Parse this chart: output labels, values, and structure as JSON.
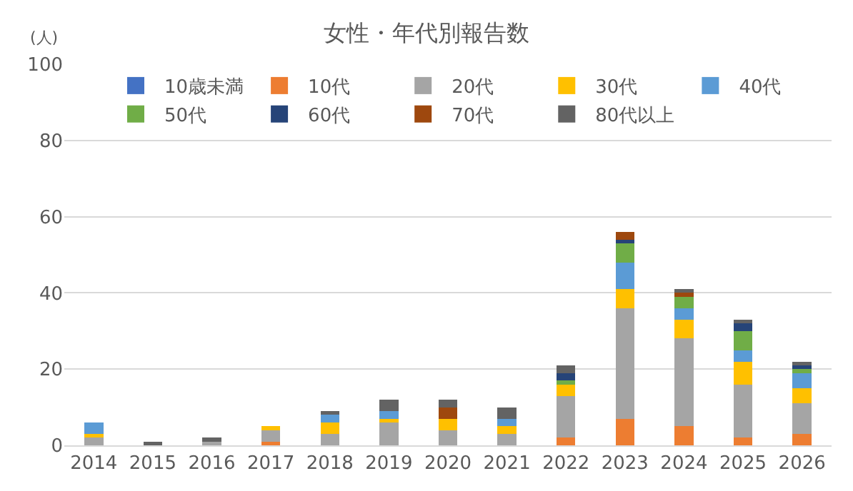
{
  "chart_data": {
    "type": "bar",
    "stacked": true,
    "title": "女性・年代別報告数",
    "ylabel": "(人)",
    "categories": [
      "2014",
      "2015",
      "2016",
      "2017",
      "2018",
      "2019",
      "2020",
      "2021",
      "2022",
      "2023",
      "2024",
      "2025",
      "2026"
    ],
    "series": [
      {
        "name": "10歳未満",
        "color": "#4472c4",
        "values": [
          0,
          0,
          0,
          0,
          0,
          0,
          0,
          0,
          0,
          0,
          0,
          0,
          0
        ]
      },
      {
        "name": "10代",
        "color": "#ed7d31",
        "values": [
          0,
          0,
          0,
          1,
          0,
          0,
          0,
          0,
          2,
          7,
          5,
          2,
          3
        ]
      },
      {
        "name": "20代",
        "color": "#a5a5a5",
        "values": [
          2,
          0,
          1,
          3,
          3,
          6,
          4,
          3,
          11,
          29,
          23,
          14,
          8
        ]
      },
      {
        "name": "30代",
        "color": "#ffc000",
        "values": [
          1,
          0,
          0,
          1,
          3,
          1,
          3,
          2,
          3,
          5,
          5,
          6,
          4
        ]
      },
      {
        "name": "40代",
        "color": "#5b9bd5",
        "values": [
          3,
          0,
          0,
          0,
          2,
          2,
          0,
          2,
          0,
          7,
          3,
          3,
          4
        ]
      },
      {
        "name": "50代",
        "color": "#70ad47",
        "values": [
          0,
          0,
          0,
          0,
          0,
          0,
          0,
          0,
          1,
          5,
          3,
          5,
          1
        ]
      },
      {
        "name": "60代",
        "color": "#264478",
        "values": [
          0,
          0,
          0,
          0,
          0,
          0,
          0,
          0,
          2,
          1,
          0,
          2,
          1
        ]
      },
      {
        "name": "70代",
        "color": "#9e480e",
        "values": [
          0,
          0,
          0,
          0,
          0,
          0,
          3,
          0,
          0,
          2,
          1,
          0,
          0
        ]
      },
      {
        "name": "80代以上",
        "color": "#636363",
        "values": [
          0,
          1,
          1,
          0,
          1,
          3,
          2,
          3,
          2,
          0,
          1,
          1,
          1
        ]
      }
    ],
    "ylim": [
      0,
      100
    ],
    "yticks": [
      0,
      20,
      40,
      60,
      80,
      100
    ],
    "grid": "y",
    "legend": "top"
  }
}
